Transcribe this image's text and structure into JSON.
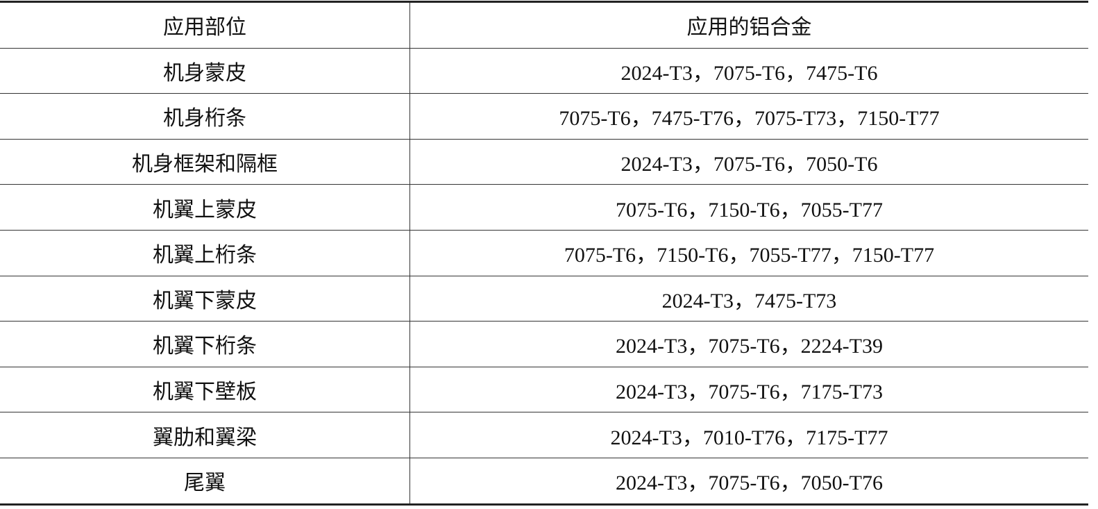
{
  "table": {
    "headers": [
      "应用部位",
      "应用的铝合金"
    ],
    "rows": [
      [
        "机身蒙皮",
        "2024-T3，7075-T6，7475-T6"
      ],
      [
        "机身桁条",
        "7075-T6，7475-T76，7075-T73，7150-T77"
      ],
      [
        "机身框架和隔框",
        "2024-T3，7075-T6，7050-T6"
      ],
      [
        "机翼上蒙皮",
        "7075-T6，7150-T6，7055-T77"
      ],
      [
        "机翼上桁条",
        "7075-T6，7150-T6，7055-T77，7150-T77"
      ],
      [
        "机翼下蒙皮",
        "2024-T3，7475-T73"
      ],
      [
        "机翼下桁条",
        "2024-T3，7075-T6，2224-T39"
      ],
      [
        "机翼下壁板",
        "2024-T3，7075-T6，7175-T73"
      ],
      [
        "翼肋和翼梁",
        "2024-T3，7010-T76，7175-T77"
      ],
      [
        "尾翼",
        "2024-T3，7075-T6，7050-T76"
      ]
    ]
  }
}
